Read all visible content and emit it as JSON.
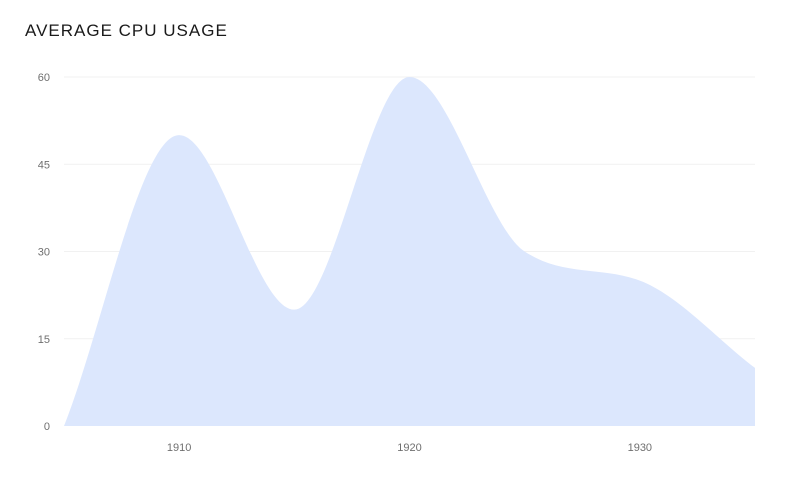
{
  "chart_data": {
    "type": "area",
    "title": "AVERAGE CPU USAGE",
    "xlabel": "",
    "ylabel": "",
    "x": [
      1905,
      1910,
      1915,
      1920,
      1925,
      1930,
      1935
    ],
    "series": [
      {
        "values": [
          0,
          50,
          20,
          60,
          30,
          25,
          10
        ]
      }
    ],
    "xlim": [
      1905,
      1935
    ],
    "ylim": [
      0,
      60
    ],
    "x_ticks": [
      1910,
      1920,
      1930
    ],
    "y_ticks": [
      0,
      15,
      30,
      45,
      60
    ],
    "grid": true,
    "legend": "none",
    "fill_color": "#dce7fd"
  }
}
